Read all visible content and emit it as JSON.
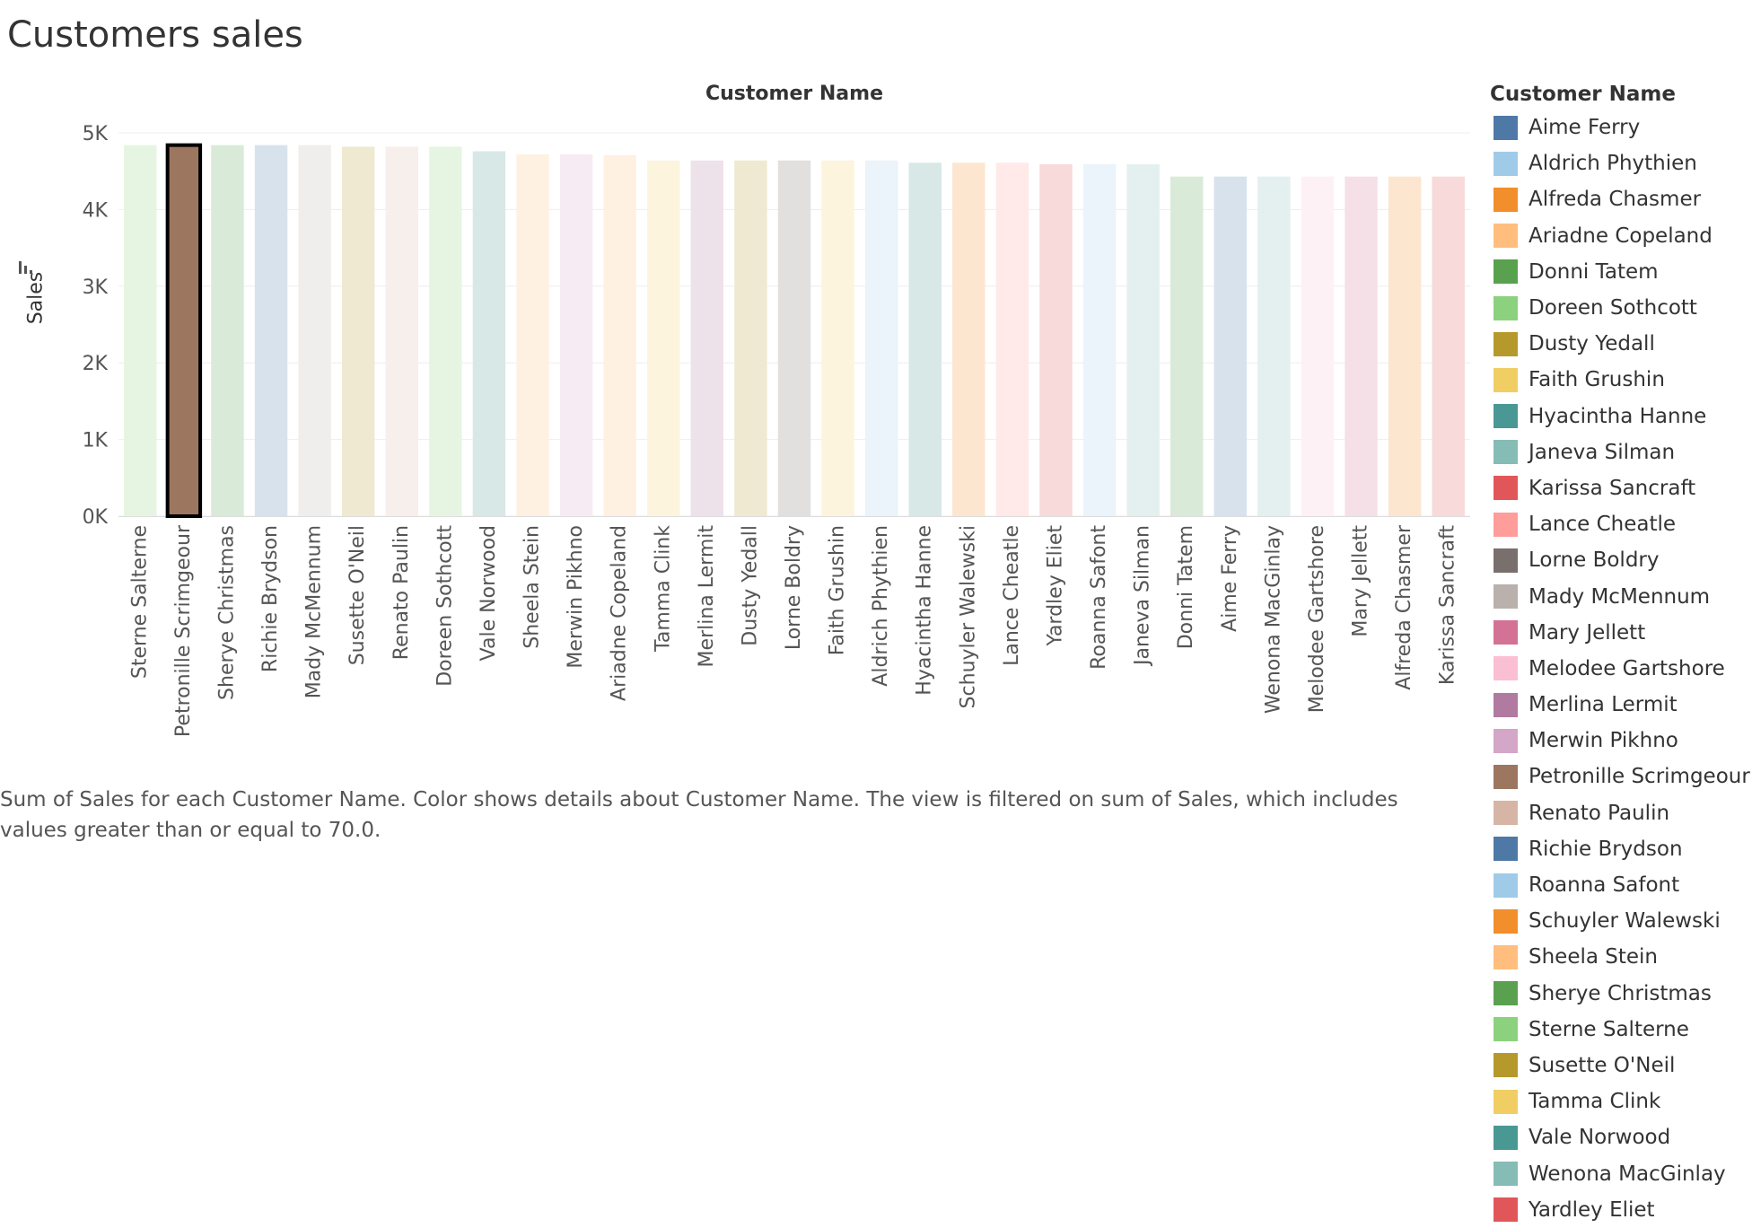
{
  "title": "Customers sales",
  "caption": "Sum of Sales for each Customer Name.  Color shows details about Customer Name. The view is filtered on sum of Sales, which includes values greater than or equal to 70.0.",
  "legend": {
    "title": "Customer Name",
    "items": [
      {
        "label": "Aime Ferry",
        "color": "#4e79a7"
      },
      {
        "label": "Aldrich Phythien",
        "color": "#a0cbe8"
      },
      {
        "label": "Alfreda Chasmer",
        "color": "#f28e2b"
      },
      {
        "label": "Ariadne Copeland",
        "color": "#ffbe7d"
      },
      {
        "label": "Donni Tatem",
        "color": "#59a14f"
      },
      {
        "label": "Doreen Sothcott",
        "color": "#8cd17d"
      },
      {
        "label": "Dusty Yedall",
        "color": "#b6992d"
      },
      {
        "label": "Faith Grushin",
        "color": "#f1ce63"
      },
      {
        "label": "Hyacintha Hanne",
        "color": "#499894"
      },
      {
        "label": "Janeva Silman",
        "color": "#86bcb6"
      },
      {
        "label": "Karissa Sancraft",
        "color": "#e15759"
      },
      {
        "label": "Lance Cheatle",
        "color": "#ff9d9a"
      },
      {
        "label": "Lorne Boldry",
        "color": "#79706e"
      },
      {
        "label": "Mady McMennum",
        "color": "#bab0ac"
      },
      {
        "label": "Mary Jellett",
        "color": "#d37295"
      },
      {
        "label": "Melodee Gartshore",
        "color": "#fabfd2"
      },
      {
        "label": "Merlina Lermit",
        "color": "#b07aa1"
      },
      {
        "label": "Merwin Pikhno",
        "color": "#d4a6c8"
      },
      {
        "label": "Petronille Scrimgeour",
        "color": "#9d7660"
      },
      {
        "label": "Renato Paulin",
        "color": "#d7b5a6"
      },
      {
        "label": "Richie Brydson",
        "color": "#4e79a7"
      },
      {
        "label": "Roanna Safont",
        "color": "#a0cbe8"
      },
      {
        "label": "Schuyler Walewski",
        "color": "#f28e2b"
      },
      {
        "label": "Sheela Stein",
        "color": "#ffbe7d"
      },
      {
        "label": "Sherye Christmas",
        "color": "#59a14f"
      },
      {
        "label": "Sterne Salterne",
        "color": "#8cd17d"
      },
      {
        "label": "Susette O'Neil",
        "color": "#b6992d"
      },
      {
        "label": "Tamma Clink",
        "color": "#f1ce63"
      },
      {
        "label": "Vale Norwood",
        "color": "#499894"
      },
      {
        "label": "Wenona MacGinlay",
        "color": "#86bcb6"
      },
      {
        "label": "Yardley Eliet",
        "color": "#e15759"
      }
    ]
  },
  "chart_data": {
    "type": "bar",
    "title": "Customers sales",
    "header": "Customer Name",
    "xlabel": "",
    "ylabel": "Sales",
    "ylim": [
      0,
      5000
    ],
    "y_ticks": [
      "0K",
      "1K",
      "2K",
      "3K",
      "4K",
      "5K"
    ],
    "highlighted": "Petronille Scrimgeour",
    "categories": [
      "Sterne Salterne",
      "Petronille Scrimgeour",
      "Sherye Christmas",
      "Richie Brydson",
      "Mady McMennum",
      "Susette O'Neil",
      "Renato Paulin",
      "Doreen Sothcott",
      "Vale Norwood",
      "Sheela Stein",
      "Merwin Pikhno",
      "Ariadne Copeland",
      "Tamma Clink",
      "Merlina Lermit",
      "Dusty Yedall",
      "Lorne Boldry",
      "Faith Grushin",
      "Aldrich Phythien",
      "Hyacintha Hanne",
      "Schuyler Walewski",
      "Lance Cheatle",
      "Yardley Eliet",
      "Roanna Safont",
      "Janeva Silman",
      "Donni Tatem",
      "Aime Ferry",
      "Wenona MacGinlay",
      "Melodee Gartshore",
      "Mary Jellett",
      "Alfreda Chasmer",
      "Karissa Sancraft"
    ],
    "values": [
      4840,
      4840,
      4840,
      4840,
      4840,
      4820,
      4820,
      4820,
      4760,
      4720,
      4720,
      4710,
      4640,
      4640,
      4640,
      4640,
      4640,
      4640,
      4610,
      4610,
      4610,
      4590,
      4590,
      4590,
      4430,
      4430,
      4430,
      4430,
      4430,
      4430,
      4430
    ]
  }
}
